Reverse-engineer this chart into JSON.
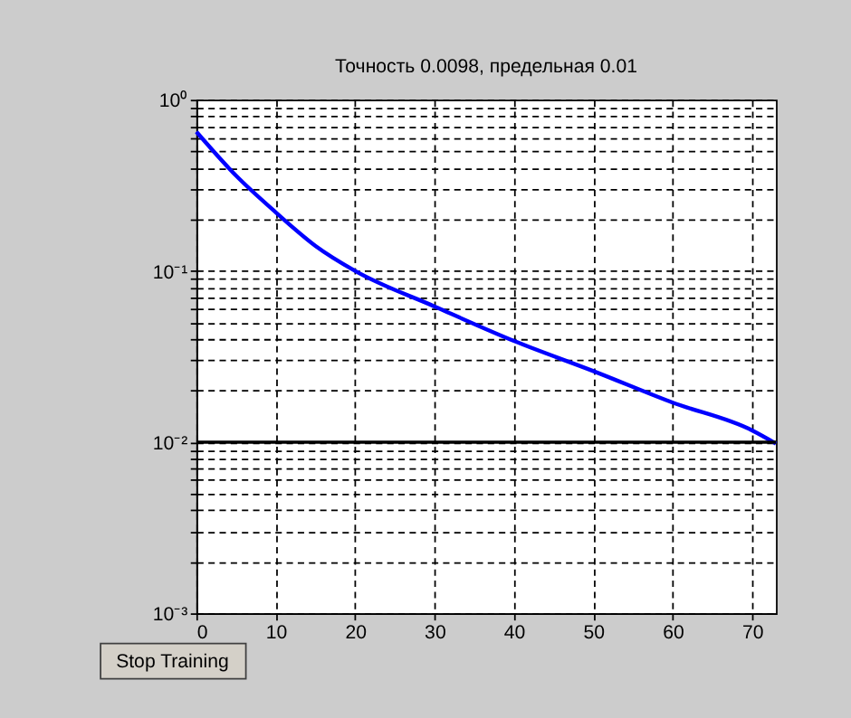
{
  "chart_data": {
    "type": "line",
    "title": "Точность 0.0098, предельная 0.01",
    "x": [
      0,
      5,
      10,
      15,
      20,
      30,
      40,
      50,
      60,
      70,
      73
    ],
    "series": [
      {
        "color": "#0000ff",
        "values": [
          0.65,
          0.36,
          0.22,
          0.14,
          0.1,
          0.062,
          0.039,
          0.026,
          0.017,
          0.0117,
          0.0098
        ]
      }
    ],
    "log": "y",
    "xlim": [
      0,
      73
    ],
    "xticks": [
      0,
      10,
      20,
      30,
      40,
      50,
      60,
      70
    ],
    "ylim": [
      0.001,
      1
    ],
    "yticks": [
      {
        "value": 0.001,
        "label": "10⁻³"
      },
      {
        "value": 0.002,
        "label": null
      },
      {
        "value": 0.003,
        "label": null
      },
      {
        "value": 0.004,
        "label": null
      },
      {
        "value": 0.005,
        "label": null
      },
      {
        "value": 0.006,
        "label": null
      },
      {
        "value": 0.007,
        "label": null
      },
      {
        "value": 0.008,
        "label": null
      },
      {
        "value": 0.009,
        "label": null
      },
      {
        "value": 0.01,
        "label": "10⁻²"
      },
      {
        "value": 0.02,
        "label": null
      },
      {
        "value": 0.03,
        "label": null
      },
      {
        "value": 0.04,
        "label": null
      },
      {
        "value": 0.05,
        "label": null
      },
      {
        "value": 0.06,
        "label": null
      },
      {
        "value": 0.07,
        "label": null
      },
      {
        "value": 0.08,
        "label": null
      },
      {
        "value": 0.09,
        "label": null
      },
      {
        "value": 0.1,
        "label": "10⁻¹"
      },
      {
        "value": 0.2,
        "label": null
      },
      {
        "value": 0.3,
        "label": null
      },
      {
        "value": 0.4,
        "label": null
      },
      {
        "value": 0.5,
        "label": null
      },
      {
        "value": 0.6,
        "label": null
      },
      {
        "value": 0.7,
        "label": null
      },
      {
        "value": 0.8,
        "label": null
      },
      {
        "value": 0.9,
        "label": null
      },
      {
        "value": 1,
        "label": "10⁰"
      }
    ],
    "grid": true,
    "line_style": "solid",
    "ref_lines": [
      {
        "axis": "y",
        "value": 0.01,
        "color": "#000000"
      }
    ],
    "annotations": [
      "Stop Training"
    ]
  }
}
